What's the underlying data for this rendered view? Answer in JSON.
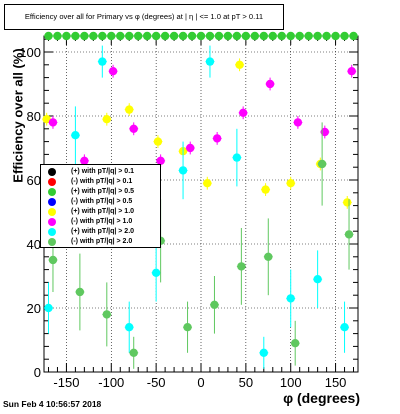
{
  "title": "Efficiency over all for Primary vs φ (degrees) at | η | <= 1.0 at pT > 0.11",
  "footer": "Sun Feb  4 10:56:57 2018",
  "chart_data": {
    "type": "scatter",
    "xlabel": "φ (degrees)",
    "ylabel": "Efficiency over all (%)",
    "xlim": [
      -175,
      175
    ],
    "ylim": [
      0,
      105
    ],
    "xticks": [
      -150,
      -100,
      -50,
      0,
      50,
      100,
      150
    ],
    "yticks": [
      0,
      20,
      40,
      60,
      80,
      100
    ],
    "grid": true,
    "legend_position": "middle-left",
    "series": [
      {
        "name": "(+) with pT/|q| > 0.1",
        "color": "#000000",
        "points": []
      },
      {
        "name": "(-) with pT/|q| > 0.1",
        "color": "#ff0000",
        "points": []
      },
      {
        "name": "(+) with pT/|q| > 0.5",
        "color": "#33cc33",
        "x": [
          -170,
          -160,
          -150,
          -140,
          -130,
          -120,
          -110,
          -100,
          -90,
          -80,
          -70,
          -60,
          -50,
          -40,
          -30,
          -20,
          -10,
          0,
          10,
          20,
          30,
          40,
          50,
          60,
          70,
          80,
          90,
          100,
          110,
          120,
          130,
          140,
          150,
          160,
          170
        ],
        "y": [
          105,
          105,
          105,
          105,
          105,
          105,
          105,
          105,
          105,
          105,
          105,
          105,
          105,
          105,
          105,
          105,
          105,
          105,
          105,
          105,
          105,
          105,
          105,
          105,
          105,
          105,
          105,
          105,
          105,
          105,
          105,
          105,
          105,
          105,
          105
        ],
        "yerr": []
      },
      {
        "name": "(-) with pT/|q| > 0.5",
        "color": "#0000ff",
        "points": []
      },
      {
        "name": "(+) with pT/|q| > 1.0",
        "color": "#ffff00",
        "x": [
          -172,
          -125,
          -105,
          -80,
          -48,
          -20,
          7,
          43,
          72,
          100,
          133,
          163
        ],
        "y": [
          79,
          62,
          79,
          82,
          72,
          69,
          59,
          96,
          57,
          59,
          65,
          53
        ],
        "yerr": [
          2,
          2,
          2,
          2,
          2,
          2,
          2,
          2,
          2,
          2,
          2,
          2
        ]
      },
      {
        "name": "(-) with pT/|q| > 1.0",
        "color": "#ff00ff",
        "x": [
          -165,
          -130,
          -98,
          -75,
          -45,
          -12,
          18,
          47,
          77,
          108,
          138,
          168
        ],
        "y": [
          78,
          66,
          94,
          76,
          66,
          70,
          73,
          81,
          90,
          78,
          75,
          94
        ],
        "yerr": [
          2,
          2,
          2,
          2,
          2,
          2,
          2,
          2,
          2,
          2,
          2,
          2
        ]
      },
      {
        "name": "(+) with pT/|q| > 2.0",
        "color": "#00ffff",
        "x": [
          -170,
          -140,
          -110,
          -80,
          -50,
          -20,
          10,
          40,
          70,
          100,
          130,
          160
        ],
        "y": [
          20,
          74,
          97,
          14,
          31,
          63,
          97,
          67,
          6,
          23,
          29,
          14
        ],
        "yerr": [
          8,
          9,
          5,
          8,
          9,
          9,
          5,
          9,
          5,
          9,
          9,
          8
        ]
      },
      {
        "name": "(-) with pT/|q| > 2.0",
        "color": "#5fc85f",
        "x": [
          -165,
          -135,
          -105,
          -75,
          -45,
          -15,
          15,
          45,
          75,
          105,
          135,
          165
        ],
        "y": [
          35,
          25,
          18,
          6,
          41,
          14,
          21,
          33,
          36,
          9,
          65,
          43
        ],
        "yerr": [
          10,
          12,
          10,
          5,
          13,
          8,
          9,
          12,
          12,
          7,
          13,
          11
        ]
      }
    ]
  }
}
